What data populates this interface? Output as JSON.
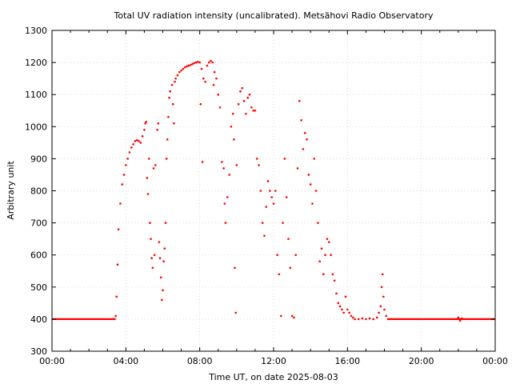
{
  "chart_data": {
    "type": "scatter",
    "title": "Total UV radiation intensity (uncalibrated). Metsähovi Radio Observatory",
    "xlabel": "Time UT, on date 2025-08-03",
    "ylabel": "Arbitrary unit",
    "xlim_hours": [
      0,
      24
    ],
    "ylim": [
      300,
      1300
    ],
    "grid": true,
    "x_tick_labels": [
      "00:00",
      "04:00",
      "08:00",
      "12:00",
      "16:00",
      "20:00",
      "00:00"
    ],
    "y_tick_labels": [
      "300",
      "400",
      "500",
      "600",
      "700",
      "800",
      "900",
      "1000",
      "1100",
      "1200",
      "1300"
    ],
    "series": [
      {
        "color": "#ff0000",
        "baseline": 400,
        "points": [
          [
            3.4,
            400
          ],
          [
            3.45,
            410
          ],
          [
            3.5,
            470
          ],
          [
            3.55,
            570
          ],
          [
            3.6,
            680
          ],
          [
            3.7,
            760
          ],
          [
            3.8,
            820
          ],
          [
            3.9,
            850
          ],
          [
            4.0,
            880
          ],
          [
            4.1,
            900
          ],
          [
            4.2,
            920
          ],
          [
            4.3,
            935
          ],
          [
            4.4,
            945
          ],
          [
            4.5,
            955
          ],
          [
            4.6,
            958
          ],
          [
            4.7,
            955
          ],
          [
            4.8,
            950
          ],
          [
            4.9,
            970
          ],
          [
            5.0,
            990
          ],
          [
            5.05,
            1010
          ],
          [
            5.1,
            1015
          ],
          [
            5.15,
            840
          ],
          [
            5.2,
            790
          ],
          [
            5.25,
            900
          ],
          [
            5.3,
            700
          ],
          [
            5.35,
            650
          ],
          [
            5.4,
            590
          ],
          [
            5.45,
            560
          ],
          [
            5.5,
            870
          ],
          [
            5.55,
            600
          ],
          [
            5.6,
            880
          ],
          [
            5.7,
            990
          ],
          [
            5.75,
            1010
          ],
          [
            5.8,
            640
          ],
          [
            5.85,
            590
          ],
          [
            5.9,
            530
          ],
          [
            5.95,
            460
          ],
          [
            6.0,
            490
          ],
          [
            6.05,
            580
          ],
          [
            6.1,
            620
          ],
          [
            6.15,
            700
          ],
          [
            6.2,
            900
          ],
          [
            6.25,
            960
          ],
          [
            6.3,
            1030
          ],
          [
            6.35,
            1090
          ],
          [
            6.4,
            1110
          ],
          [
            6.5,
            1130
          ],
          [
            6.55,
            1070
          ],
          [
            6.6,
            1010
          ],
          [
            6.65,
            1140
          ],
          [
            6.7,
            1150
          ],
          [
            6.8,
            1160
          ],
          [
            6.9,
            1170
          ],
          [
            7.0,
            1175
          ],
          [
            7.1,
            1180
          ],
          [
            7.2,
            1185
          ],
          [
            7.3,
            1188
          ],
          [
            7.4,
            1190
          ],
          [
            7.5,
            1192
          ],
          [
            7.6,
            1195
          ],
          [
            7.7,
            1198
          ],
          [
            7.8,
            1200
          ],
          [
            7.9,
            1202
          ],
          [
            8.0,
            1200
          ],
          [
            8.05,
            1070
          ],
          [
            8.1,
            1180
          ],
          [
            8.15,
            890
          ],
          [
            8.2,
            1150
          ],
          [
            8.3,
            1140
          ],
          [
            8.4,
            1190
          ],
          [
            8.5,
            1200
          ],
          [
            8.6,
            1205
          ],
          [
            8.7,
            1200
          ],
          [
            8.75,
            1130
          ],
          [
            8.8,
            1170
          ],
          [
            8.9,
            1150
          ],
          [
            9.0,
            1100
          ],
          [
            9.1,
            1060
          ],
          [
            9.2,
            890
          ],
          [
            9.3,
            870
          ],
          [
            9.35,
            760
          ],
          [
            9.4,
            700
          ],
          [
            9.5,
            780
          ],
          [
            9.6,
            850
          ],
          [
            9.7,
            1000
          ],
          [
            9.8,
            1040
          ],
          [
            9.85,
            960
          ],
          [
            9.9,
            560
          ],
          [
            9.95,
            420
          ],
          [
            10.0,
            880
          ],
          [
            10.1,
            1070
          ],
          [
            10.2,
            1110
          ],
          [
            10.3,
            1120
          ],
          [
            10.4,
            1080
          ],
          [
            10.5,
            1040
          ],
          [
            10.6,
            1090
          ],
          [
            10.7,
            1100
          ],
          [
            10.8,
            1060
          ],
          [
            10.9,
            1050
          ],
          [
            11.0,
            1050
          ],
          [
            11.1,
            900
          ],
          [
            11.2,
            880
          ],
          [
            11.3,
            800
          ],
          [
            11.4,
            700
          ],
          [
            11.5,
            660
          ],
          [
            11.6,
            750
          ],
          [
            11.7,
            830
          ],
          [
            11.8,
            800
          ],
          [
            11.9,
            780
          ],
          [
            12.0,
            760
          ],
          [
            12.1,
            800
          ],
          [
            12.2,
            600
          ],
          [
            12.3,
            540
          ],
          [
            12.4,
            410
          ],
          [
            12.5,
            700
          ],
          [
            12.6,
            900
          ],
          [
            12.7,
            780
          ],
          [
            12.8,
            650
          ],
          [
            12.9,
            560
          ],
          [
            13.0,
            410
          ],
          [
            13.1,
            405
          ],
          [
            13.2,
            600
          ],
          [
            13.3,
            870
          ],
          [
            13.4,
            1080
          ],
          [
            13.5,
            1020
          ],
          [
            13.6,
            930
          ],
          [
            13.7,
            980
          ],
          [
            13.8,
            960
          ],
          [
            13.9,
            850
          ],
          [
            14.0,
            820
          ],
          [
            14.1,
            760
          ],
          [
            14.2,
            900
          ],
          [
            14.3,
            800
          ],
          [
            14.4,
            700
          ],
          [
            14.5,
            580
          ],
          [
            14.6,
            620
          ],
          [
            14.7,
            540
          ],
          [
            14.8,
            600
          ],
          [
            14.9,
            650
          ],
          [
            15.0,
            640
          ],
          [
            15.1,
            600
          ],
          [
            15.2,
            540
          ],
          [
            15.3,
            520
          ],
          [
            15.4,
            480
          ],
          [
            15.5,
            450
          ],
          [
            15.6,
            440
          ],
          [
            15.7,
            430
          ],
          [
            15.8,
            420
          ],
          [
            15.9,
            470
          ],
          [
            16.0,
            430
          ],
          [
            16.1,
            420
          ],
          [
            16.2,
            410
          ],
          [
            16.3,
            405
          ],
          [
            16.4,
            400
          ],
          [
            16.6,
            400
          ],
          [
            16.8,
            402
          ],
          [
            17.0,
            400
          ],
          [
            17.2,
            402
          ],
          [
            17.4,
            400
          ],
          [
            17.6,
            405
          ],
          [
            17.7,
            420
          ],
          [
            17.8,
            440
          ],
          [
            17.85,
            500
          ],
          [
            17.9,
            540
          ],
          [
            17.95,
            470
          ],
          [
            18.0,
            430
          ],
          [
            18.1,
            410
          ],
          [
            18.2,
            400
          ],
          [
            22.0,
            405
          ],
          [
            22.1,
            395
          ],
          [
            22.2,
            402
          ]
        ]
      }
    ]
  }
}
